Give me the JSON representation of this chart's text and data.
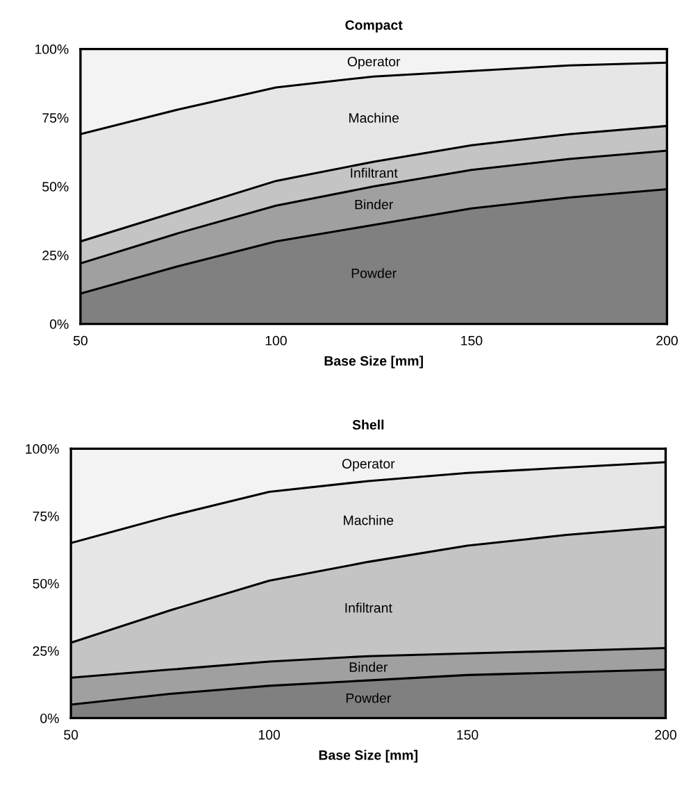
{
  "chart_data": [
    {
      "type": "area",
      "stacked": true,
      "title": "Compact",
      "xlabel": "Base Size [mm]",
      "x": [
        50,
        75,
        100,
        125,
        150,
        175,
        200
      ],
      "series": [
        {
          "name": "Powder",
          "color": "#808080",
          "values": [
            11,
            21,
            30,
            36,
            42,
            46,
            49
          ]
        },
        {
          "name": "Binder",
          "color": "#a0a0a0",
          "values": [
            11,
            12,
            13,
            14,
            14,
            14,
            14
          ]
        },
        {
          "name": "Infiltrant",
          "color": "#c4c4c4",
          "values": [
            8,
            8,
            9,
            9,
            9,
            9,
            9
          ]
        },
        {
          "name": "Machine",
          "color": "#e6e6e6",
          "values": [
            39,
            37,
            34,
            31,
            27,
            25,
            23
          ]
        },
        {
          "name": "Operator",
          "color": "#f3f3f3",
          "values": [
            31,
            22,
            14,
            10,
            8,
            6,
            5
          ]
        }
      ],
      "xlim": [
        50,
        200
      ],
      "xticks": [
        50,
        100,
        150,
        200
      ],
      "ylim": [
        0,
        100
      ],
      "yticks": [
        {
          "value": 0,
          "label": "0%"
        },
        {
          "value": 25,
          "label": "25%"
        },
        {
          "value": 50,
          "label": "50%"
        },
        {
          "value": 75,
          "label": "75%"
        },
        {
          "value": 100,
          "label": "100%"
        }
      ],
      "grid": false
    },
    {
      "type": "area",
      "stacked": true,
      "title": "Shell",
      "xlabel": "Base Size [mm]",
      "x": [
        50,
        75,
        100,
        125,
        150,
        175,
        200
      ],
      "series": [
        {
          "name": "Powder",
          "color": "#808080",
          "values": [
            5,
            9,
            12,
            14,
            16,
            17,
            18
          ]
        },
        {
          "name": "Binder",
          "color": "#a0a0a0",
          "values": [
            10,
            9,
            9,
            9,
            8,
            8,
            8
          ]
        },
        {
          "name": "Infiltrant",
          "color": "#c4c4c4",
          "values": [
            13,
            22,
            30,
            35,
            40,
            43,
            45
          ]
        },
        {
          "name": "Machine",
          "color": "#e6e6e6",
          "values": [
            37,
            35,
            33,
            30,
            27,
            25,
            24
          ]
        },
        {
          "name": "Operator",
          "color": "#f3f3f3",
          "values": [
            35,
            25,
            16,
            12,
            9,
            7,
            5
          ]
        }
      ],
      "xlim": [
        50,
        200
      ],
      "xticks": [
        50,
        100,
        150,
        200
      ],
      "ylim": [
        0,
        100
      ],
      "yticks": [
        {
          "value": 0,
          "label": "0%"
        },
        {
          "value": 25,
          "label": "25%"
        },
        {
          "value": 50,
          "label": "50%"
        },
        {
          "value": 75,
          "label": "75%"
        },
        {
          "value": 100,
          "label": "100%"
        }
      ],
      "grid": false
    }
  ]
}
